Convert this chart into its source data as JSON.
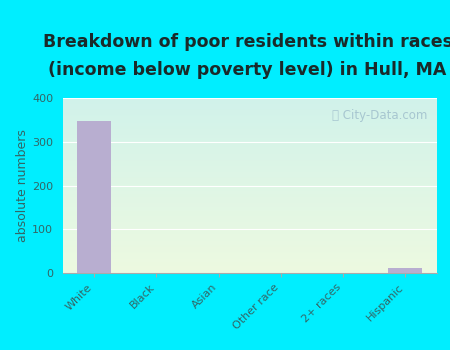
{
  "categories": [
    "White",
    "Black",
    "Asian",
    "Other race",
    "2+ races",
    "Hispanic"
  ],
  "values": [
    348,
    0,
    0,
    0,
    0,
    12
  ],
  "bar_color": "#b8aed0",
  "title_line1": "Breakdown of poor residents within races",
  "title_line2": "(income below poverty level) in Hull, MA",
  "ylabel": "absolute numbers",
  "ylim": [
    0,
    400
  ],
  "yticks": [
    0,
    100,
    200,
    300,
    400
  ],
  "background_outer": "#00eeff",
  "grad_top_left": "#c8e8f0",
  "grad_bottom_right": "#e8f5e0",
  "watermark_text": "City-Data.com",
  "title_fontsize": 12.5,
  "ylabel_fontsize": 9,
  "tick_fontsize": 8,
  "title_color": "#1a2a2a",
  "axis_color": "#336666"
}
